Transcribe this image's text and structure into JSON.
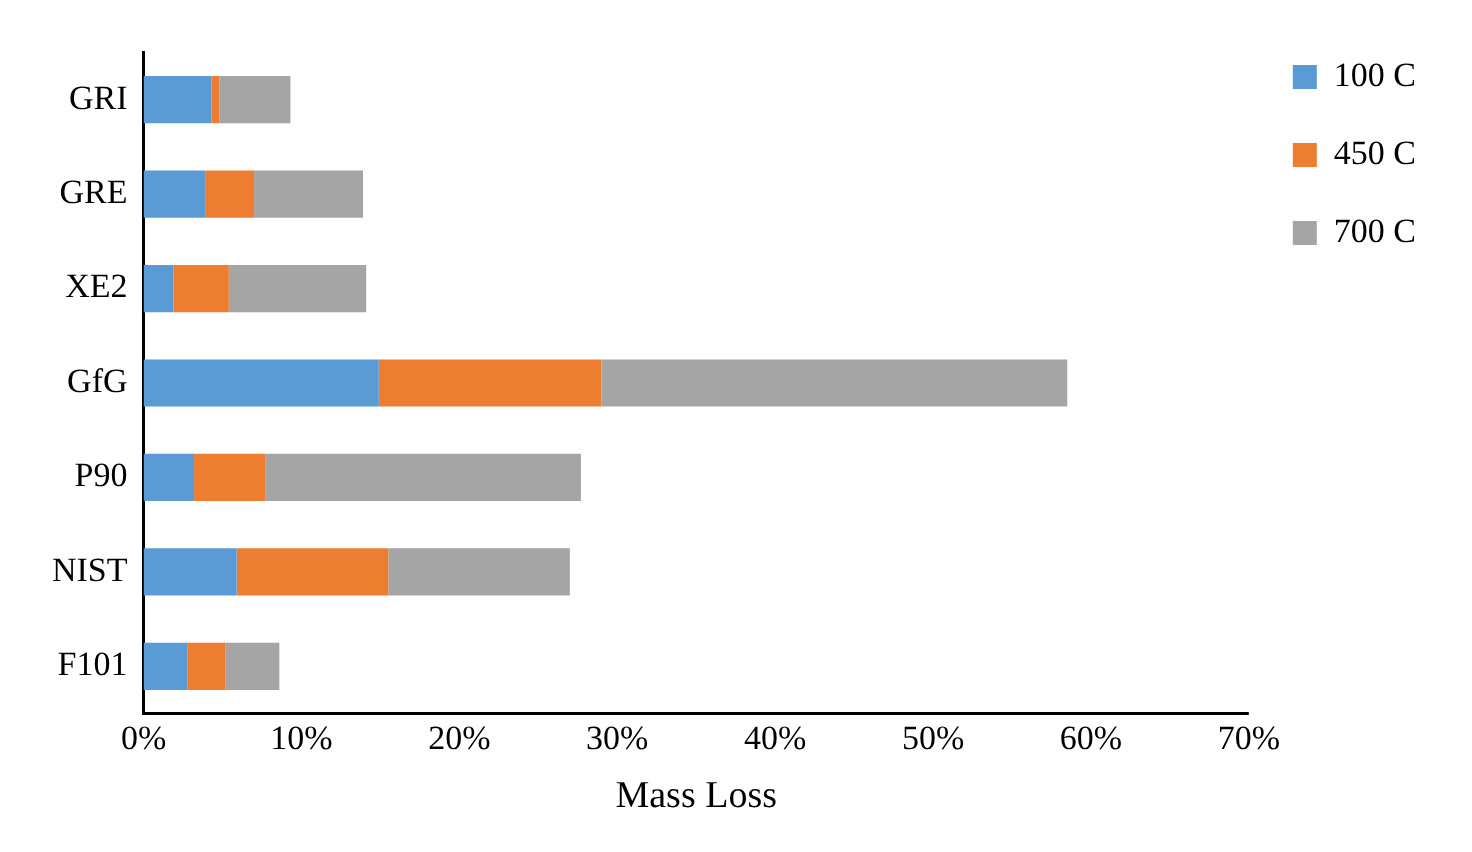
{
  "chart_data": {
    "type": "bar",
    "orientation": "horizontal",
    "stacked": true,
    "xlabel": "Mass Loss",
    "categories": [
      "GRI",
      "GRE",
      "XE2",
      "GfG",
      "P90",
      "NIST",
      "F101"
    ],
    "series": [
      {
        "name": "100 C",
        "color": "#5b9bd5",
        "values": [
          4.3,
          3.9,
          1.9,
          14.9,
          3.2,
          5.9,
          2.8
        ]
      },
      {
        "name": "450 C",
        "color": "#ed7d31",
        "values": [
          0.5,
          3.1,
          3.5,
          14.1,
          4.5,
          9.6,
          2.4
        ]
      },
      {
        "name": "700 C",
        "color": "#a5a5a5",
        "values": [
          4.5,
          6.9,
          8.7,
          29.5,
          20.0,
          11.5,
          3.4
        ]
      }
    ],
    "xlim": [
      0,
      70
    ],
    "xticks": [
      {
        "value": 0,
        "label": "0%"
      },
      {
        "value": 10,
        "label": "10%"
      },
      {
        "value": 20,
        "label": "20%"
      },
      {
        "value": 30,
        "label": "30%"
      },
      {
        "value": 40,
        "label": "40%"
      },
      {
        "value": 50,
        "label": "50%"
      },
      {
        "value": 60,
        "label": "60%"
      },
      {
        "value": 70,
        "label": "70%"
      }
    ],
    "grid": false,
    "legend": "top right"
  }
}
